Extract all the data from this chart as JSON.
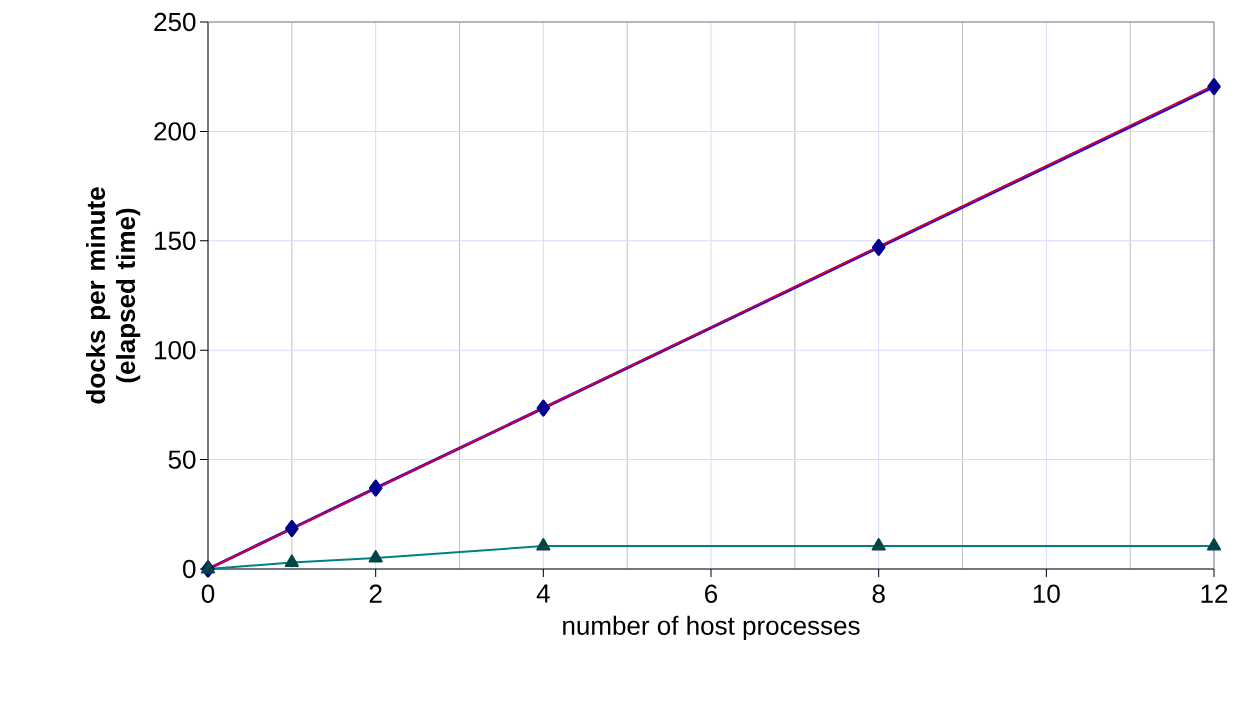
{
  "chart_data": {
    "type": "line",
    "xlabel": "number of host processes",
    "ylabel": "docks per minute (elapsed time)",
    "x": [
      0,
      1,
      2,
      4,
      8,
      12
    ],
    "series": [
      {
        "color": "#0000ff",
        "marker": "diamond",
        "values": [
          0,
          18.5,
          37,
          73.5,
          147,
          220.5
        ]
      },
      {
        "color": "#cc0033",
        "marker": "none",
        "x": [
          0,
          12
        ],
        "values": [
          0,
          221
        ]
      },
      {
        "color": "#008080",
        "marker": "triangle",
        "values": [
          0,
          3,
          5,
          10.5,
          10.5,
          10.5
        ]
      }
    ],
    "xlim": [
      0,
      12
    ],
    "ylim": [
      0,
      250
    ],
    "xticks": [
      0,
      2,
      4,
      6,
      8,
      10,
      12
    ],
    "yticks": [
      0,
      50,
      100,
      150,
      200,
      250
    ],
    "grid": true,
    "line_style": "solid"
  }
}
